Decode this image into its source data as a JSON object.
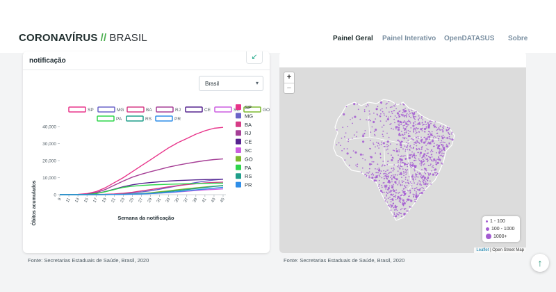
{
  "header": {
    "brand_bold": "CORONAVÍRUS",
    "brand_slash": "//",
    "brand_light": "BRASIL",
    "nav": [
      "Painel Geral",
      "Painel Interativo",
      "OpenDATASUS",
      "Sobre"
    ],
    "active_nav": "Painel Geral"
  },
  "left_card": {
    "title": "notificação",
    "expand_icon": "arrow-diagonal-icon",
    "select_value": "Brasil",
    "source": "Fonte: Secretarias Estaduais de Saúde, Brasil, 2020"
  },
  "right_card": {
    "source": "Fonte: Secretarias Estaduais de Saúde, Brasil, 2020",
    "zoom_in": "+",
    "zoom_out": "−",
    "legend": [
      "1 - 100",
      "100 - 1000",
      "1000+"
    ],
    "attribution_link": "Leaflet",
    "attribution_text": "| Open Street Map",
    "dot_color": "#a35bd1"
  },
  "chart_data": {
    "type": "line",
    "xlabel": "Semana da notificação",
    "ylabel": "Óbitos acumulados",
    "x": [
      9,
      11,
      13,
      15,
      17,
      19,
      21,
      23,
      25,
      27,
      29,
      31,
      33,
      35,
      37,
      39,
      41,
      43,
      45
    ],
    "yticks": [
      "0",
      "10,000",
      "20,000",
      "30,000",
      "40,000"
    ],
    "ylim": [
      0,
      40000
    ],
    "series": [
      {
        "name": "SP",
        "color": "#e8348a",
        "values": [
          0,
          0,
          150,
          600,
          1800,
          4000,
          7000,
          10000,
          13500,
          17000,
          20500,
          24000,
          27500,
          30500,
          33000,
          35500,
          37500,
          39000,
          39500
        ]
      },
      {
        "name": "MG",
        "color": "#6a63c8",
        "values": [
          0,
          0,
          0,
          20,
          60,
          150,
          300,
          600,
          1000,
          1600,
          2300,
          3200,
          4200,
          5200,
          6200,
          7100,
          7900,
          8600,
          9100
        ]
      },
      {
        "name": "BA",
        "color": "#d63c86",
        "values": [
          0,
          0,
          0,
          20,
          80,
          200,
          450,
          800,
          1400,
          2200,
          3000,
          3800,
          4600,
          5300,
          5900,
          6400,
          6900,
          7200,
          7400
        ]
      },
      {
        "name": "RJ",
        "color": "#a63f96",
        "values": [
          0,
          0,
          50,
          300,
          1200,
          3000,
          5500,
          8000,
          10300,
          12000,
          13500,
          14800,
          16200,
          17300,
          18300,
          19200,
          20000,
          20600,
          21000
        ]
      },
      {
        "name": "CE",
        "color": "#55238f",
        "values": [
          0,
          0,
          20,
          150,
          700,
          1800,
          3200,
          4700,
          5800,
          6600,
          7100,
          7600,
          8000,
          8300,
          8500,
          8700,
          8850,
          8950,
          9050
        ]
      },
      {
        "name": "SC",
        "color": "#cc5ce0",
        "values": [
          0,
          0,
          0,
          5,
          20,
          60,
          120,
          200,
          300,
          450,
          650,
          900,
          1200,
          1600,
          2000,
          2400,
          2800,
          3100,
          3400
        ]
      },
      {
        "name": "GO",
        "color": "#7cb82f",
        "values": [
          0,
          0,
          0,
          5,
          15,
          40,
          90,
          180,
          350,
          650,
          1100,
          1700,
          2300,
          2900,
          3500,
          4000,
          4500,
          5000,
          5400
        ]
      },
      {
        "name": "PA",
        "color": "#2ed54c",
        "values": [
          0,
          0,
          10,
          120,
          600,
          1700,
          3000,
          4300,
          5000,
          5400,
          5700,
          5900,
          6100,
          6250,
          6400,
          6500,
          6600,
          6700,
          6750
        ]
      },
      {
        "name": "RS",
        "color": "#1f9e8a",
        "values": [
          0,
          0,
          0,
          10,
          30,
          70,
          130,
          220,
          360,
          560,
          850,
          1250,
          1800,
          2400,
          3000,
          3600,
          4200,
          4800,
          5300
        ]
      },
      {
        "name": "PR",
        "color": "#2f8ee8",
        "values": [
          0,
          0,
          0,
          10,
          30,
          60,
          110,
          180,
          280,
          420,
          640,
          950,
          1350,
          1800,
          2300,
          2800,
          3300,
          3800,
          4300
        ]
      }
    ]
  }
}
